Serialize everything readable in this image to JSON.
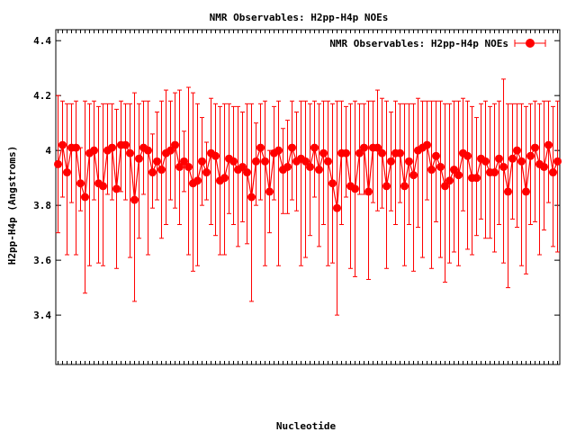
{
  "colors": {
    "series": "#ff0000",
    "axis": "#000000",
    "background": "#ffffff"
  },
  "chart_data": {
    "type": "scatter",
    "title": "NMR Observables: H2pp-H4p NOEs",
    "xlabel": "Nucleotide",
    "ylabel": "H2pp-H4p (Angstroms)",
    "ylim": [
      3.22,
      4.44
    ],
    "yticks": [
      3.4,
      3.6,
      3.8,
      4.0,
      4.2,
      4.4
    ],
    "ytick_labels": [
      "3.4",
      "3.6",
      "3.8",
      "4",
      "4.2",
      "4.4"
    ],
    "grid": false,
    "legend": {
      "position": "top-right",
      "entries": [
        "NMR Observables: H2pp-H4p NOEs"
      ]
    },
    "x_tick_labels_legible": false,
    "series": [
      {
        "name": "NMR Observables: H2pp-H4p NOEs",
        "style": "line-with-points-and-error-bars",
        "y": [
          3.95,
          4.02,
          3.92,
          4.01,
          4.01,
          3.88,
          3.83,
          3.99,
          4.0,
          3.88,
          3.87,
          4.0,
          4.01,
          3.86,
          4.02,
          4.02,
          3.99,
          3.82,
          3.97,
          4.01,
          4.0,
          3.92,
          3.96,
          3.93,
          3.99,
          4.0,
          4.02,
          3.94,
          3.96,
          3.94,
          3.88,
          3.89,
          3.96,
          3.92,
          3.99,
          3.98,
          3.89,
          3.9,
          3.97,
          3.96,
          3.93,
          3.94,
          3.92,
          3.83,
          3.96,
          4.01,
          3.96,
          3.85,
          3.99,
          4.0,
          3.93,
          3.94,
          4.01,
          3.96,
          3.97,
          3.96,
          3.94,
          4.01,
          3.93,
          3.99,
          3.96,
          3.88,
          3.79,
          3.99,
          3.99,
          3.87,
          3.86,
          3.99,
          4.01,
          3.85,
          4.01,
          4.01,
          3.99,
          3.87,
          3.96,
          3.99,
          3.99,
          3.87,
          3.96,
          3.91,
          4.0,
          4.01,
          4.02,
          3.93,
          3.98,
          3.94,
          3.87,
          3.89,
          3.93,
          3.91,
          3.99,
          3.98,
          3.9,
          3.9,
          3.97,
          3.96,
          3.92,
          3.92,
          3.97,
          3.94,
          3.85,
          3.97,
          4.0,
          3.96,
          3.85,
          3.98,
          4.01,
          3.95,
          3.94,
          4.02,
          3.92,
          3.96
        ],
        "err_low": [
          3.7,
          3.83,
          3.62,
          3.81,
          3.62,
          3.78,
          3.48,
          3.58,
          3.82,
          3.59,
          3.58,
          3.84,
          3.82,
          3.57,
          3.85,
          3.82,
          3.61,
          3.45,
          3.68,
          3.84,
          3.62,
          3.79,
          3.82,
          3.68,
          3.73,
          3.82,
          3.79,
          3.73,
          3.85,
          3.62,
          3.56,
          3.58,
          3.8,
          3.82,
          3.73,
          3.69,
          3.62,
          3.62,
          3.77,
          3.73,
          3.65,
          3.74,
          3.66,
          3.45,
          3.8,
          3.82,
          3.58,
          3.7,
          3.82,
          3.58,
          3.77,
          3.77,
          3.82,
          3.78,
          3.58,
          3.61,
          3.69,
          3.83,
          3.65,
          3.73,
          3.58,
          3.59,
          3.4,
          3.73,
          3.83,
          3.57,
          3.54,
          3.84,
          3.84,
          3.53,
          3.81,
          3.78,
          3.79,
          3.57,
          3.78,
          3.73,
          3.81,
          3.58,
          3.73,
          3.56,
          3.72,
          3.61,
          3.82,
          3.57,
          3.74,
          3.61,
          3.52,
          3.59,
          3.63,
          3.58,
          3.78,
          3.64,
          3.62,
          3.69,
          3.75,
          3.68,
          3.68,
          3.63,
          3.73,
          3.59,
          3.5,
          3.75,
          3.72,
          3.58,
          3.55,
          3.73,
          3.74,
          3.62,
          3.71,
          3.81,
          3.65,
          3.63
        ],
        "err_high": [
          4.2,
          4.18,
          4.17,
          4.17,
          4.18,
          4.01,
          4.18,
          4.17,
          4.18,
          4.16,
          4.17,
          4.17,
          4.17,
          4.15,
          4.18,
          4.17,
          4.17,
          4.21,
          4.17,
          4.18,
          4.18,
          4.06,
          4.14,
          4.18,
          4.22,
          4.18,
          4.21,
          4.22,
          4.07,
          4.23,
          4.21,
          4.17,
          4.12,
          4.03,
          4.19,
          4.17,
          4.16,
          4.17,
          4.17,
          4.16,
          4.16,
          4.14,
          4.17,
          4.17,
          4.1,
          4.17,
          4.18,
          4.0,
          4.16,
          4.18,
          4.08,
          4.11,
          4.18,
          4.14,
          4.18,
          4.18,
          4.17,
          4.18,
          4.17,
          4.18,
          4.18,
          4.17,
          4.18,
          4.18,
          4.16,
          4.17,
          4.18,
          4.17,
          4.17,
          4.18,
          4.18,
          4.22,
          4.19,
          4.18,
          4.14,
          4.18,
          4.17,
          4.17,
          4.17,
          4.17,
          4.19,
          4.18,
          4.18,
          4.18,
          4.18,
          4.18,
          4.17,
          4.17,
          4.18,
          4.18,
          4.19,
          4.18,
          4.16,
          4.12,
          4.17,
          4.18,
          4.16,
          4.17,
          4.18,
          4.26,
          4.17,
          4.17,
          4.17,
          4.17,
          4.16,
          4.17,
          4.18,
          4.17,
          4.18,
          4.18,
          4.16,
          4.18
        ]
      }
    ]
  }
}
